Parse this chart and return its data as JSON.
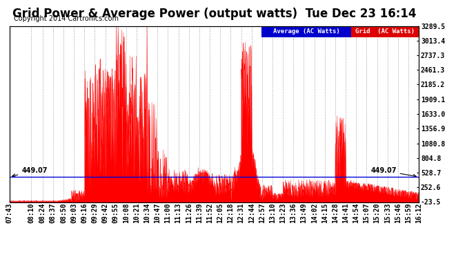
{
  "title": "Grid Power & Average Power (output watts)  Tue Dec 23 16:14",
  "copyright": "Copyright 2014 Cartronics.com",
  "ylabel_right_ticks": [
    3289.5,
    3013.4,
    2737.3,
    2461.3,
    2185.2,
    1909.1,
    1633.0,
    1356.9,
    1080.8,
    804.8,
    528.7,
    252.6,
    -23.5
  ],
  "ymin": -23.5,
  "ymax": 3289.5,
  "average_value": 449.07,
  "average_color": "#0000dd",
  "grid_color": "#ff0000",
  "background_color": "#ffffff",
  "plot_bg_color": "#ffffff",
  "legend_avg_bg": "#0000cc",
  "legend_grid_bg": "#dd0000",
  "legend_text": "Average (AC Watts)",
  "legend_grid_text": "Grid  (AC Watts)",
  "xtick_labels": [
    "07:43",
    "08:10",
    "08:24",
    "08:37",
    "08:50",
    "09:03",
    "09:16",
    "09:29",
    "09:42",
    "09:55",
    "10:08",
    "10:21",
    "10:34",
    "10:47",
    "11:00",
    "11:13",
    "11:26",
    "11:39",
    "11:52",
    "12:05",
    "12:18",
    "12:31",
    "12:44",
    "12:57",
    "13:10",
    "13:23",
    "13:36",
    "13:49",
    "14:02",
    "14:15",
    "14:28",
    "14:41",
    "14:54",
    "15:07",
    "15:20",
    "15:33",
    "15:46",
    "15:59",
    "16:12"
  ],
  "title_fontsize": 12,
  "tick_fontsize": 7,
  "copyright_fontsize": 7
}
